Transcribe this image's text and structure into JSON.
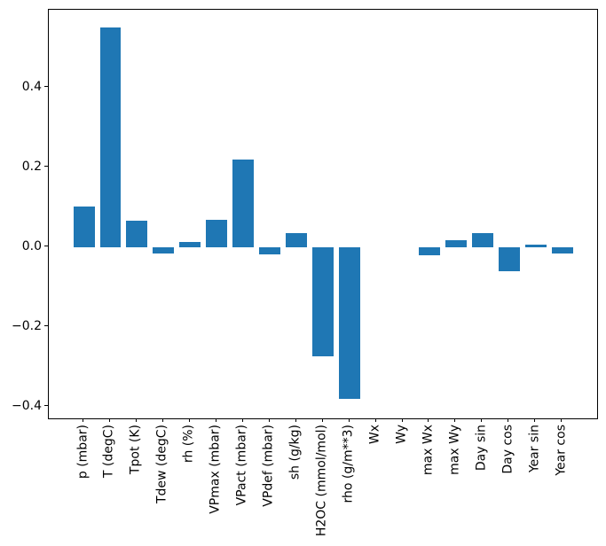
{
  "figure": {
    "background": "#ffffff",
    "title": ""
  },
  "chart_data": {
    "type": "bar",
    "title": "",
    "xlabel": "",
    "ylabel": "",
    "categories": [
      "p (mbar)",
      "T (degC)",
      "Tpot (K)",
      "Tdew (degC)",
      "rh (%)",
      "VPmax (mbar)",
      "VPact (mbar)",
      "VPdef (mbar)",
      "sh (g/kg)",
      "H2OC (mmol/mol)",
      "rho (g/m**3)",
      "Wx",
      "Wy",
      "max Wx",
      "max Wy",
      "Day sin",
      "Day cos",
      "Year sin",
      "Year cos"
    ],
    "values": [
      0.101,
      0.55,
      0.065,
      -0.016,
      0.012,
      0.069,
      0.219,
      -0.018,
      0.035,
      -0.275,
      -0.381,
      0.0,
      0.0,
      -0.02,
      0.017,
      0.035,
      -0.06,
      0.005,
      -0.017
    ],
    "bar_color": "#1f77b4",
    "bar_width": 0.8,
    "ylim": [
      -0.43,
      0.595
    ],
    "xlim": [
      -1.32,
      19.31
    ],
    "yticks": [
      -0.4,
      -0.2,
      0.0,
      0.2,
      0.4
    ],
    "ytick_labels": [
      "−0.4",
      "−0.2",
      "0.0",
      "0.2",
      "0.4"
    ],
    "grid": false,
    "legend": null
  }
}
